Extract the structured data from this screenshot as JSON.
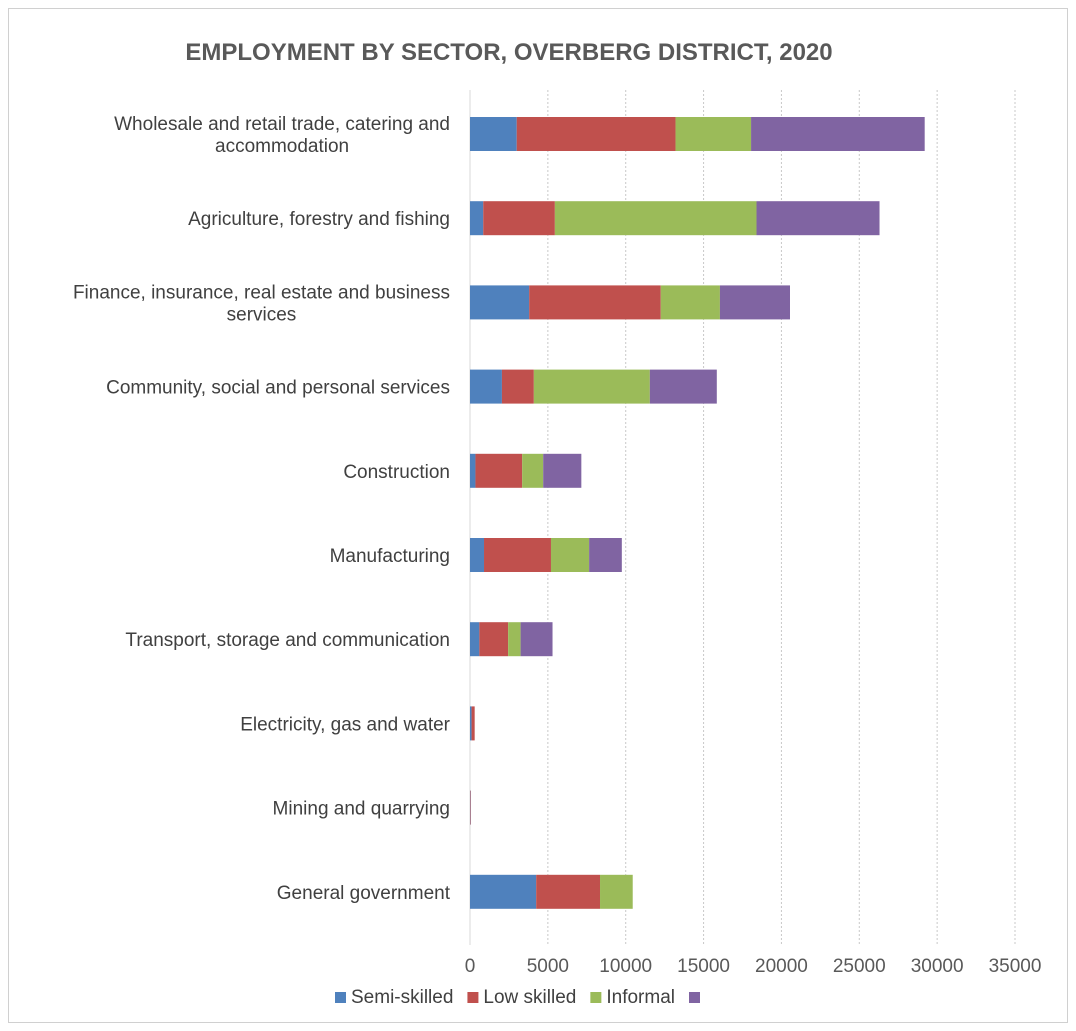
{
  "chart_data": {
    "type": "bar",
    "orientation": "horizontal",
    "stacked": true,
    "title": "EMPLOYMENT BY SECTOR, OVERBERG DISTRICT, 2020",
    "categories": [
      [
        "Wholesale and retail trade, catering and",
        "accommodation"
      ],
      [
        "Agriculture, forestry and fishing"
      ],
      [
        "Finance, insurance, real estate and business",
        "services"
      ],
      [
        "Community, social and personal services"
      ],
      [
        "Construction"
      ],
      [
        "Manufacturing"
      ],
      [
        "Transport, storage and communication"
      ],
      [
        "Electricity, gas and water"
      ],
      [
        "Mining and quarrying"
      ],
      [
        "General government"
      ]
    ],
    "series": [
      {
        "name": "Semi-skilled",
        "color": "#4f81bd",
        "values": [
          3000,
          850,
          3800,
          2050,
          350,
          900,
          600,
          100,
          20,
          4250
        ]
      },
      {
        "name": "Low skilled",
        "color": "#c0504d",
        "values": [
          10200,
          4600,
          8450,
          2050,
          3000,
          4300,
          1850,
          200,
          30,
          4100
        ]
      },
      {
        "name": "Informal",
        "color": "#9bbb59",
        "values": [
          4850,
          12950,
          3800,
          7450,
          1350,
          2450,
          800,
          0,
          0,
          2100
        ]
      },
      {
        "name": "",
        "color": "#8064a2",
        "values": [
          11150,
          7900,
          4500,
          4300,
          2450,
          2100,
          2050,
          0,
          0,
          0
        ]
      }
    ],
    "xlim": [
      0,
      35000
    ],
    "xticks": [
      0,
      5000,
      10000,
      15000,
      20000,
      25000,
      30000,
      35000
    ],
    "grid": "vertical dotted",
    "legend": "bottom"
  }
}
